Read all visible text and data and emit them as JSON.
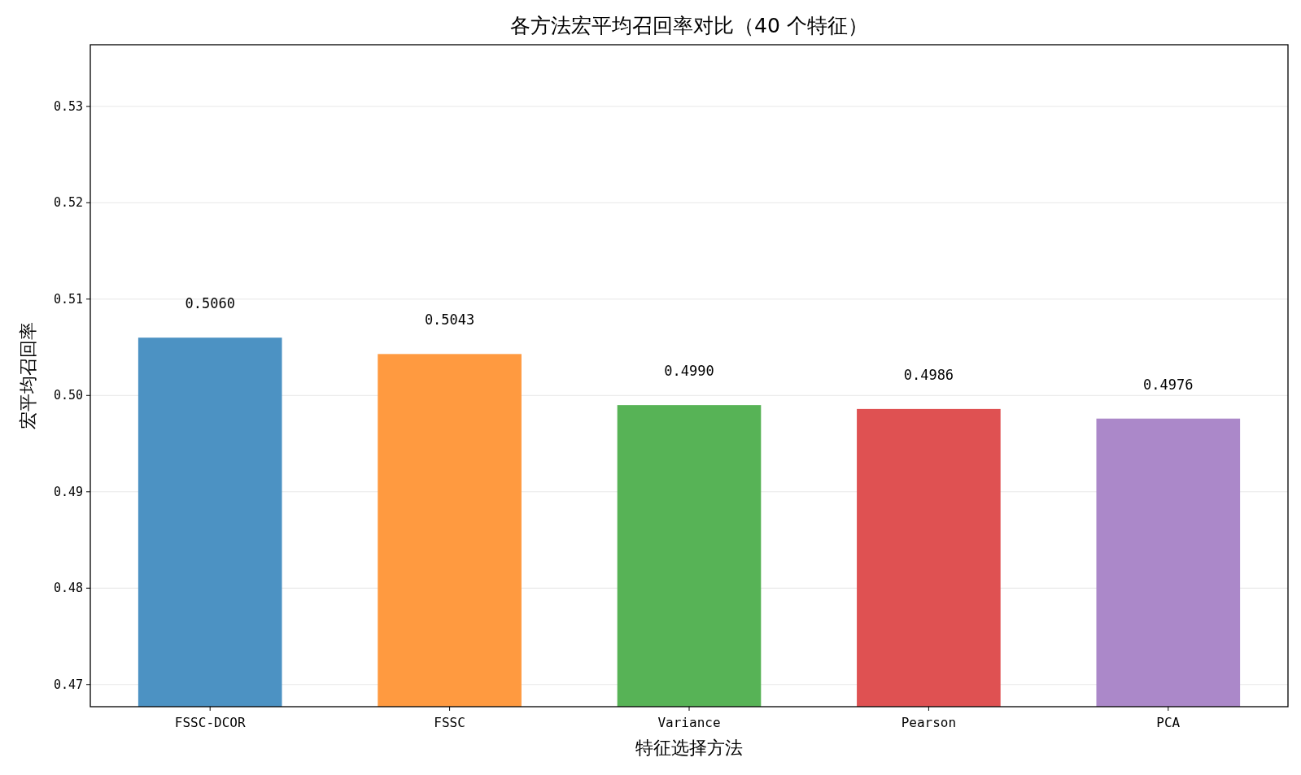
{
  "chart_data": {
    "type": "bar",
    "title": "各方法宏平均召回率对比（40 个特征）",
    "xlabel": "特征选择方法",
    "ylabel": "宏平均召回率",
    "categories": [
      "FSSC-DCOR",
      "FSSC",
      "Variance",
      "Pearson",
      "PCA"
    ],
    "values": [
      0.506,
      0.5043,
      0.499,
      0.4986,
      0.4976
    ],
    "value_labels": [
      "0.5060",
      "0.5043",
      "0.4990",
      "0.4986",
      "0.4976"
    ],
    "colors": [
      "#4c92c3",
      "#ff9a40",
      "#57b356",
      "#df5152",
      "#ab88c9"
    ],
    "ylim": [
      0.4677,
      0.5364
    ],
    "yticks": [
      0.47,
      0.48,
      0.49,
      {
        "value": 0.5,
        "label": "0.50"
      },
      0.51,
      0.52,
      0.53
    ],
    "grid": "y"
  }
}
